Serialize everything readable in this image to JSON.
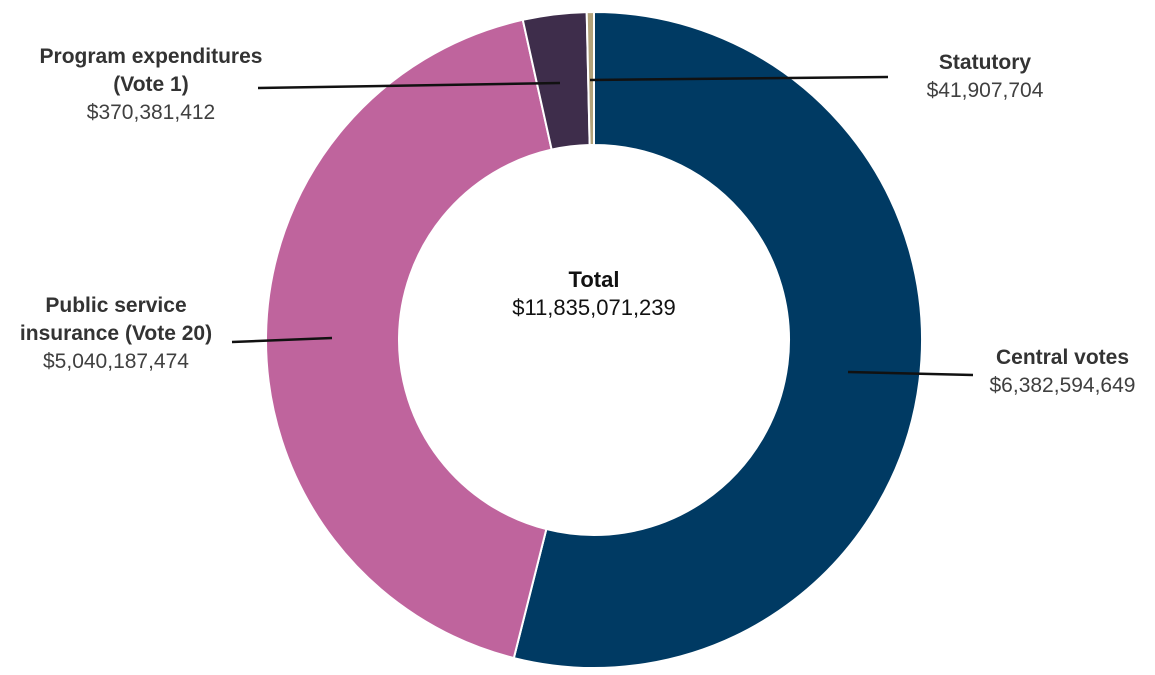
{
  "chart_data": {
    "type": "pie",
    "donut": true,
    "categories": [
      "Central votes",
      "Public service insurance (Vote 20)",
      "Program expenditures (Vote 1)",
      "Statutory"
    ],
    "values": [
      6382594649,
      5040187474,
      370381412,
      41907704
    ],
    "value_labels": [
      "$6,382,594,649",
      "$5,040,187,474",
      "$370,381,412",
      "$41,907,704"
    ],
    "colors": [
      "#003a63",
      "#bf649d",
      "#3e2d4b",
      "#b3a37a"
    ],
    "center_title": "Total",
    "total": {
      "value": 11835071239,
      "label": "$11,835,071,239"
    }
  }
}
